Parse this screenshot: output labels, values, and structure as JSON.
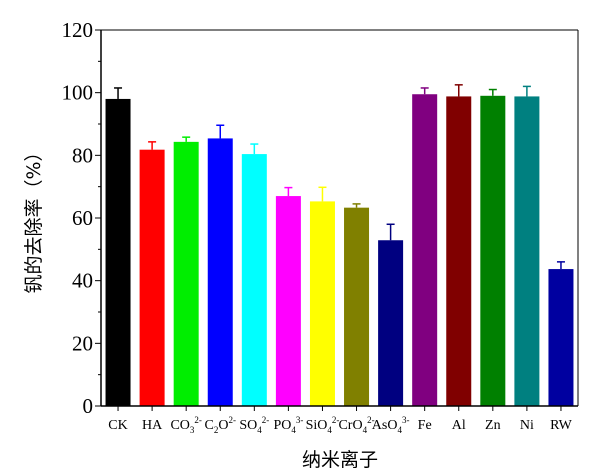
{
  "chart_data": {
    "type": "bar",
    "title": "",
    "xlabel": "纳米离子",
    "ylabel": "钒的去除率（%）",
    "ylim": [
      0,
      120
    ],
    "yticks": [
      0,
      20,
      40,
      60,
      80,
      100,
      120
    ],
    "grid": false,
    "categories": [
      {
        "base": "CK",
        "sub": "",
        "sup": ""
      },
      {
        "base": "HA",
        "sub": "",
        "sup": ""
      },
      {
        "base": "CO",
        "sub": "3",
        "sup": "2-"
      },
      {
        "base": "C",
        "sub": "2",
        "base2": "O",
        "sub2": "4",
        "sup": "2-"
      },
      {
        "base": "SO",
        "sub": "4",
        "sup": "2-"
      },
      {
        "base": "PO",
        "sub": "4",
        "sup": "3-"
      },
      {
        "base": "SiO",
        "sub": "4",
        "sup": "2-"
      },
      {
        "base": "CrO",
        "sub": "4",
        "sup": "2-"
      },
      {
        "base": "AsO",
        "sub": "4",
        "sup": "3-"
      },
      {
        "base": "Fe",
        "sub": "",
        "sup": ""
      },
      {
        "base": "Al",
        "sub": "",
        "sup": ""
      },
      {
        "base": "Zn",
        "sub": "",
        "sup": ""
      },
      {
        "base": "Ni",
        "sub": "",
        "sup": ""
      },
      {
        "base": "RW",
        "sub": "",
        "sup": ""
      }
    ],
    "values": [
      98,
      81.8,
      84.3,
      85.4,
      80.4,
      67,
      65.3,
      63.3,
      52.9,
      99.5,
      98.8,
      99,
      98.8,
      43.7
    ],
    "errors": [
      3.5,
      2.5,
      1.5,
      4.2,
      3.2,
      2.7,
      4.5,
      1.2,
      5.1,
      2,
      3.7,
      2,
      3.2,
      2.3
    ],
    "colors": [
      "#000000",
      "#ff0000",
      "#00ee00",
      "#0000ff",
      "#00ffff",
      "#ff00ff",
      "#ffff00",
      "#808000",
      "#000080",
      "#800080",
      "#800000",
      "#008000",
      "#008080",
      "#0000a0"
    ]
  }
}
